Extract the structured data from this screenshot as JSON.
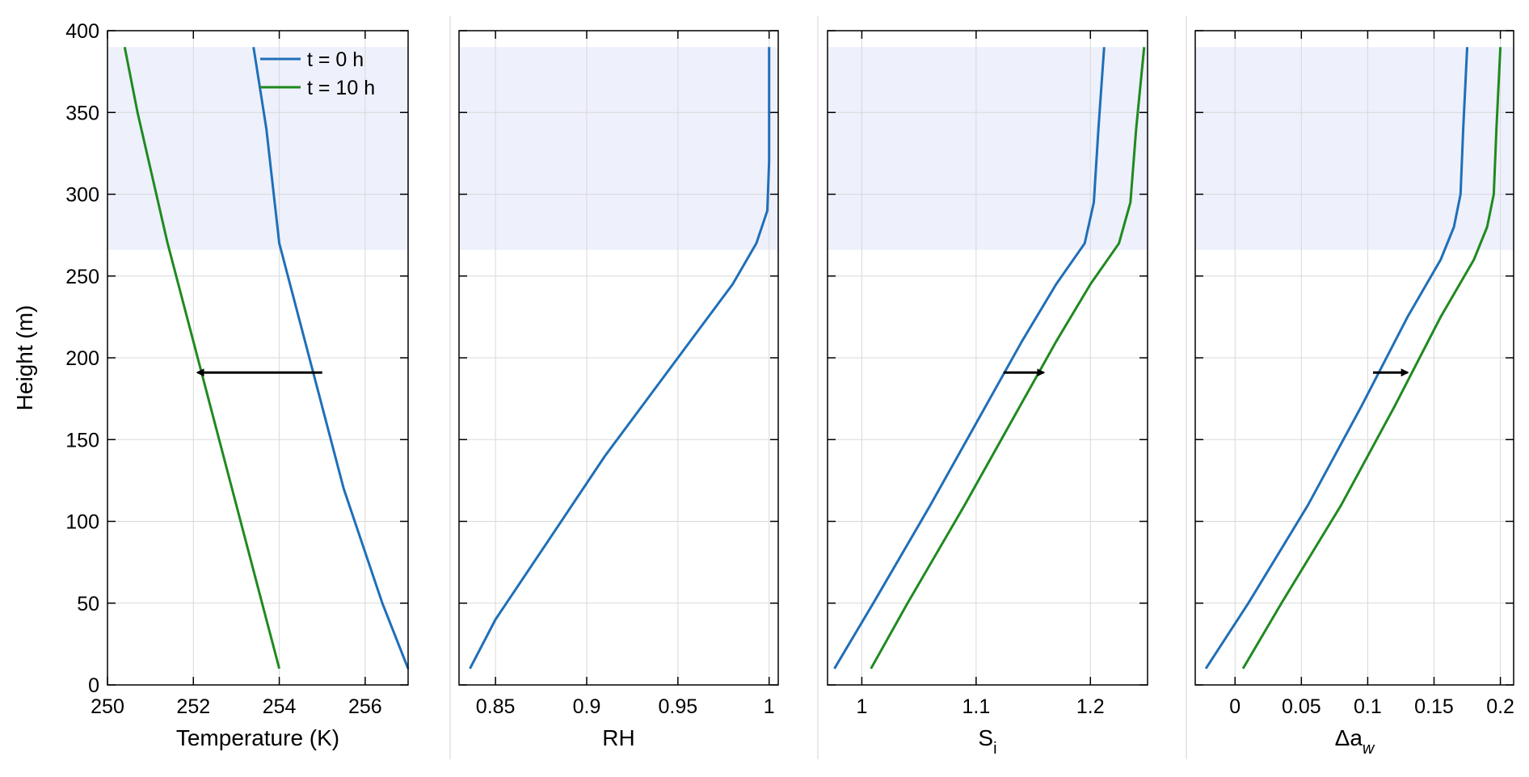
{
  "figure": {
    "shared_ylabel": "Height (m)"
  },
  "legend": {
    "entries": [
      {
        "label": "t = 0 h",
        "color": "#1f6fb8"
      },
      {
        "label": "t = 10 h",
        "color": "#1f8a1f"
      }
    ]
  },
  "colors": {
    "t0": "#1f6fb8",
    "t10": "#1f8a1f",
    "shade": "#eef0fb",
    "grid": "#d9d9d9",
    "arrow": "#000000"
  },
  "chart_data": [
    {
      "type": "line",
      "id": "temperature",
      "xlabel": "Temperature (K)",
      "ylabel": "Height (m)",
      "xlim": [
        250,
        257
      ],
      "ylim": [
        0,
        400
      ],
      "xticks": [
        250,
        252,
        254,
        256
      ],
      "xtick_labels": [
        "250",
        "252",
        "254",
        "256"
      ],
      "yticks": [
        0,
        50,
        100,
        150,
        200,
        250,
        300,
        350,
        400
      ],
      "ytick_labels": [
        "0",
        "50",
        "100",
        "150",
        "200",
        "250",
        "300",
        "350",
        "400"
      ],
      "shaded_band": [
        266,
        390
      ],
      "grid": true,
      "legend_position": "top-right",
      "series": [
        {
          "name": "t = 0 h",
          "color": "#1f6fb8",
          "x": [
            257.0,
            256.4,
            255.5,
            254.7,
            254.0,
            253.7,
            253.4
          ],
          "y": [
            10,
            50,
            120,
            200,
            270,
            340,
            390
          ]
        },
        {
          "name": "t = 10 h",
          "color": "#1f8a1f",
          "x": [
            254.0,
            253.6,
            252.9,
            252.1,
            251.4,
            250.7,
            250.4
          ],
          "y": [
            10,
            50,
            120,
            200,
            270,
            350,
            390
          ]
        }
      ],
      "annotation_arrow": {
        "from": [
          255.0,
          191
        ],
        "to": [
          252.1,
          191
        ]
      }
    },
    {
      "type": "line",
      "id": "rh",
      "xlabel": "RH",
      "xlim": [
        0.83,
        1.005
      ],
      "ylim": [
        0,
        400
      ],
      "xticks": [
        0.85,
        0.9,
        0.95,
        1
      ],
      "xtick_labels": [
        "0.85",
        "0.9",
        "0.95",
        "1"
      ],
      "yticks": [
        0,
        50,
        100,
        150,
        200,
        250,
        300,
        350,
        400
      ],
      "shaded_band": [
        266,
        390
      ],
      "grid": true,
      "series": [
        {
          "name": "",
          "color": "#1f6fb8",
          "x": [
            0.836,
            0.85,
            0.88,
            0.91,
            0.94,
            0.96,
            0.98,
            0.993,
            0.999,
            1.0,
            1.0
          ],
          "y": [
            10,
            40,
            90,
            140,
            185,
            215,
            245,
            270,
            290,
            320,
            390
          ]
        }
      ]
    },
    {
      "type": "line",
      "id": "si",
      "xlabel": "S",
      "xlabel_sub": "i",
      "xlim": [
        0.97,
        1.25
      ],
      "ylim": [
        0,
        400
      ],
      "xticks": [
        1,
        1.1,
        1.2
      ],
      "xtick_labels": [
        "1",
        "1.1",
        "1.2"
      ],
      "yticks": [
        0,
        50,
        100,
        150,
        200,
        250,
        300,
        350,
        400
      ],
      "shaded_band": [
        266,
        390
      ],
      "grid": true,
      "series": [
        {
          "name": "t = 0 h",
          "color": "#1f6fb8",
          "x": [
            0.976,
            1.01,
            1.06,
            1.1,
            1.14,
            1.17,
            1.195,
            1.203,
            1.207,
            1.212
          ],
          "y": [
            10,
            50,
            110,
            160,
            210,
            245,
            270,
            295,
            340,
            390
          ]
        },
        {
          "name": "t = 10 h",
          "color": "#1f8a1f",
          "x": [
            1.008,
            1.04,
            1.09,
            1.13,
            1.17,
            1.2,
            1.225,
            1.235,
            1.24,
            1.247
          ],
          "y": [
            10,
            50,
            110,
            160,
            210,
            245,
            270,
            295,
            340,
            390
          ]
        }
      ],
      "annotation_arrow": {
        "from": [
          1.124,
          191
        ],
        "to": [
          1.159,
          191
        ]
      }
    },
    {
      "type": "line",
      "id": "delta_aw",
      "xlabel": "Δa",
      "xlabel_sub": "w",
      "xlim": [
        -0.03,
        0.21
      ],
      "ylim": [
        0,
        400
      ],
      "xticks": [
        0,
        0.05,
        0.1,
        0.15,
        0.2
      ],
      "xtick_labels": [
        "0",
        "0.05",
        "0.1",
        "0.15",
        "0.2"
      ],
      "yticks": [
        0,
        50,
        100,
        150,
        200,
        250,
        300,
        350,
        400
      ],
      "shaded_band": [
        266,
        390
      ],
      "grid": true,
      "series": [
        {
          "name": "t = 0 h",
          "color": "#1f6fb8",
          "x": [
            -0.022,
            0.01,
            0.055,
            0.095,
            0.13,
            0.155,
            0.165,
            0.17,
            0.172,
            0.175
          ],
          "y": [
            10,
            50,
            110,
            170,
            225,
            260,
            280,
            300,
            340,
            390
          ]
        },
        {
          "name": "t = 10 h",
          "color": "#1f8a1f",
          "x": [
            0.006,
            0.035,
            0.08,
            0.12,
            0.155,
            0.18,
            0.19,
            0.195,
            0.197,
            0.2
          ],
          "y": [
            10,
            50,
            110,
            170,
            225,
            260,
            280,
            300,
            340,
            390
          ]
        }
      ],
      "annotation_arrow": {
        "from": [
          0.104,
          191
        ],
        "to": [
          0.13,
          191
        ]
      }
    }
  ]
}
